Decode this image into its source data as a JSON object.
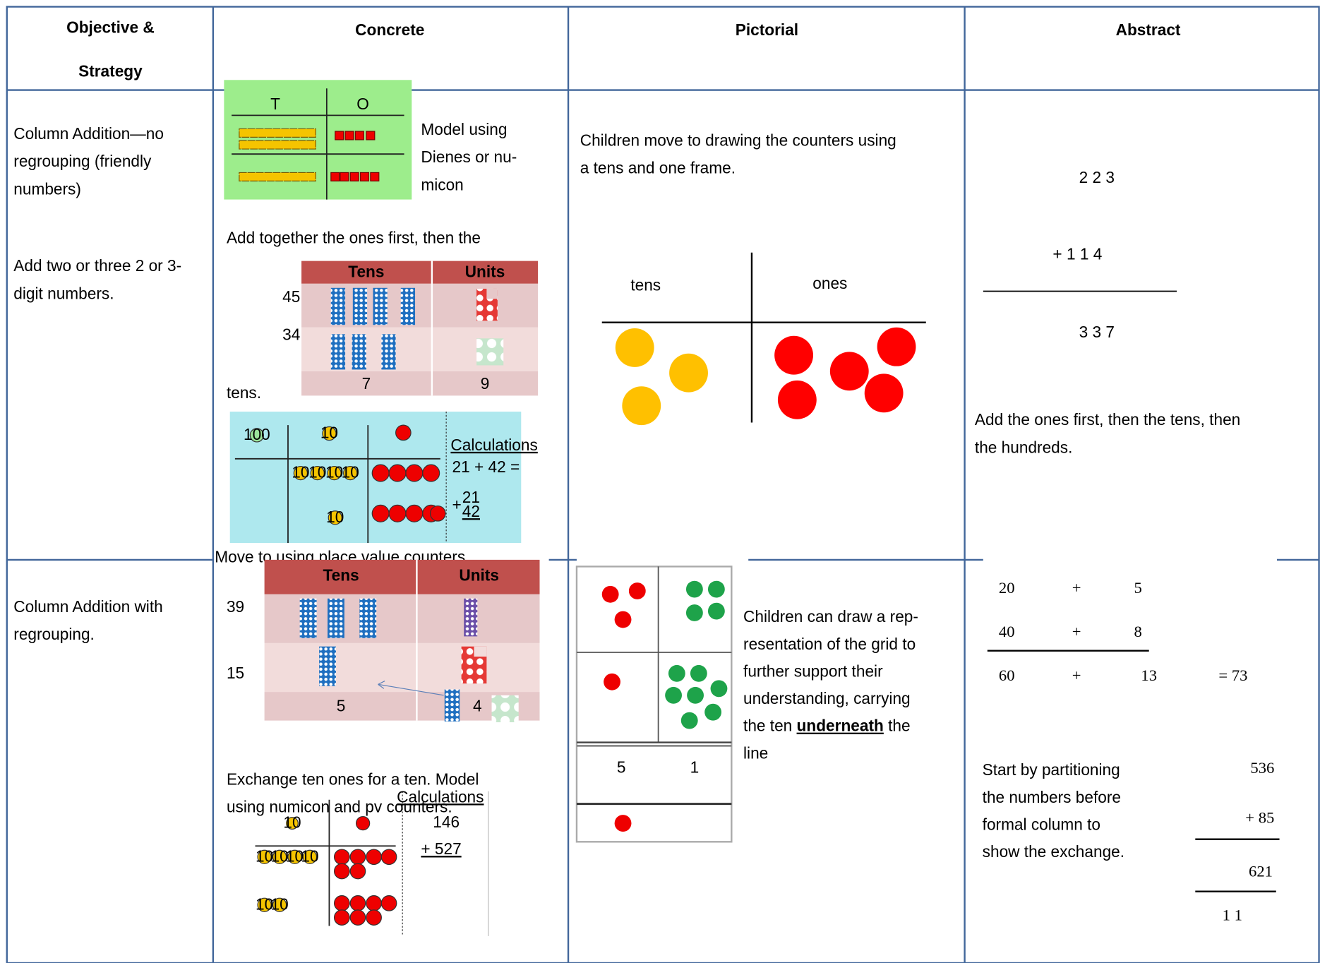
{
  "header": {
    "objective": [
      "Objective &",
      "Strategy"
    ],
    "concrete": "Concrete",
    "pictorial": "Pictorial",
    "abstract": "Abstract"
  },
  "rows": [
    {
      "objective": {
        "title": [
          "Column Addition—no",
          "regrouping (friendly",
          "numbers)"
        ],
        "detail": [
          "Add two or three 2 or 3-",
          "digit numbers."
        ]
      },
      "concrete": {
        "dienes": {
          "tens_label": "T",
          "ones_label": "O"
        },
        "caption": [
          "Model using",
          "Dienes or nu-",
          "micon"
        ],
        "instruction": [
          "Add together the ones first, then the",
          "tens."
        ],
        "table": {
          "headers": [
            "Tens",
            "Units"
          ],
          "rows": [
            "45",
            "34"
          ],
          "totals": [
            "7",
            "9"
          ]
        },
        "counters": {
          "coin_labels": [
            "100",
            "10"
          ],
          "heading": "Calculations",
          "sum": "21 + 42 =",
          "sign": "+",
          "addends": [
            "21",
            "42"
          ]
        },
        "note": "Move to using place value counters"
      },
      "pictorial": {
        "text": [
          "Children move to drawing the counters using",
          "a tens and one frame."
        ],
        "frame": {
          "tens": "tens",
          "ones": "ones"
        }
      },
      "abstract": {
        "sum": [
          "2 2 3",
          "+ 1 1 4",
          "3 3 7"
        ],
        "text": [
          "Add the ones first, then the tens, then",
          "the hundreds."
        ]
      }
    },
    {
      "objective": {
        "title": [
          "Column Addition with",
          "regrouping."
        ]
      },
      "concrete": {
        "table": {
          "headers": [
            "Tens",
            "Units"
          ],
          "rows": [
            "39",
            "15"
          ],
          "totals": [
            "5",
            "4"
          ]
        },
        "instruction": [
          "Exchange ten ones for a ten. Model",
          "using numicon and pv counters."
        ],
        "counters": {
          "coin_label": "10",
          "heading": "Calculations",
          "addends": [
            "146",
            "+ 527"
          ]
        }
      },
      "pictorial": {
        "grid": {
          "totals": [
            "5",
            "1"
          ]
        },
        "text": [
          "Children can draw a rep-",
          "resentation of the grid to",
          "further support their",
          "understanding, carrying",
          [
            "the ten ",
            "underneath",
            " the"
          ],
          "line"
        ]
      },
      "abstract": {
        "partition": [
          [
            "20",
            "+",
            "5"
          ],
          [
            "40",
            "+",
            "8"
          ],
          [
            "60",
            "+",
            "13",
            "= 73"
          ]
        ],
        "text": [
          "Start by partitioning",
          "the numbers before",
          "formal column to",
          "show the exchange."
        ],
        "column": [
          "536",
          "+ 85",
          "621",
          "1 1"
        ]
      }
    }
  ]
}
